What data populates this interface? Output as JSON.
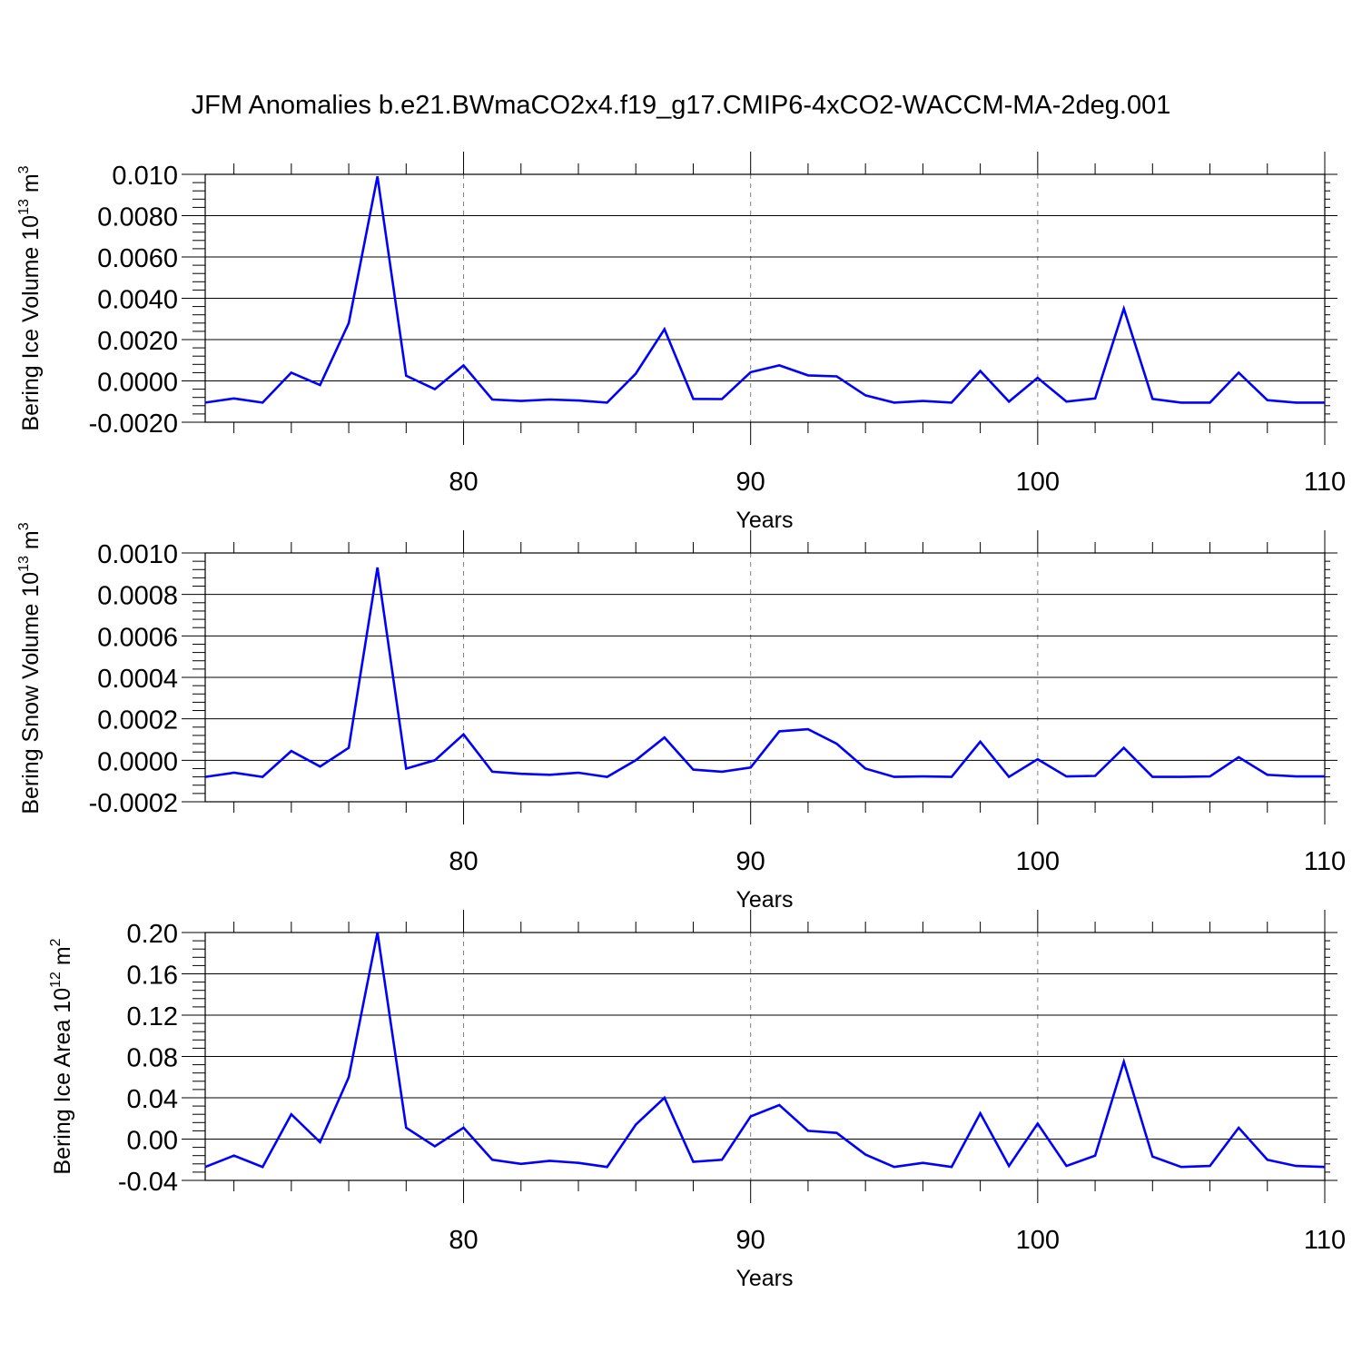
{
  "title": "JFM Anomalies b.e21.BWmaCO2x4.f19_g17.CMIP6-4xCO2-WACCM-MA-2deg.001",
  "colors": {
    "series": "#0000ff",
    "axis": "#000000",
    "grid": "#808080"
  },
  "chart_data": [
    {
      "type": "line",
      "xlabel": "Years",
      "ylabel": {
        "text": "Bering Ice Volume 10",
        "sup1": "13",
        "mid": " m",
        "sup2": "3"
      },
      "xlim": [
        71,
        110
      ],
      "ylim": [
        -0.002,
        0.01
      ],
      "xticks": [
        80,
        90,
        100,
        110
      ],
      "yticks": [
        -0.002,
        0.0,
        0.002,
        0.004,
        0.006,
        0.008,
        0.01
      ],
      "ytick_labels": [
        "-0.0020",
        "0.0000",
        "0.0020",
        "0.0040",
        "0.0060",
        "0.0080",
        "0.010"
      ],
      "grid_x": [
        80,
        90,
        100
      ],
      "x": [
        71,
        72,
        73,
        74,
        75,
        76,
        77,
        78,
        79,
        80,
        81,
        82,
        83,
        84,
        85,
        86,
        87,
        88,
        89,
        90,
        91,
        92,
        93,
        94,
        95,
        96,
        97,
        98,
        99,
        100,
        101,
        102,
        103,
        104,
        105,
        106,
        107,
        108,
        109,
        110
      ],
      "y": [
        -0.00105,
        -0.00085,
        -0.00105,
        0.0004,
        -0.0002,
        0.0028,
        0.0099,
        0.00025,
        -0.0004,
        0.00075,
        -0.0009,
        -0.00097,
        -0.0009,
        -0.00095,
        -0.00105,
        0.00035,
        0.0025,
        -0.00087,
        -0.00088,
        0.00042,
        0.00075,
        0.00027,
        0.00022,
        -0.0007,
        -0.00105,
        -0.00097,
        -0.00105,
        0.00048,
        -0.001,
        0.00015,
        -0.001,
        -0.00085,
        0.0035,
        -0.00087,
        -0.00105,
        -0.00105,
        0.0004,
        -0.00093,
        -0.00105,
        -0.00105
      ]
    },
    {
      "type": "line",
      "xlabel": "Years",
      "ylabel": {
        "text": "Bering Snow Volume 10",
        "sup1": "13",
        "mid": " m",
        "sup2": "3"
      },
      "xlim": [
        71,
        110
      ],
      "ylim": [
        -0.0002,
        0.001
      ],
      "xticks": [
        80,
        90,
        100,
        110
      ],
      "yticks": [
        -0.0002,
        0.0,
        0.0002,
        0.0004,
        0.0006,
        0.0008,
        0.001
      ],
      "ytick_labels": [
        "-0.0002",
        "0.0000",
        "0.0002",
        "0.0004",
        "0.0006",
        "0.0008",
        "0.0010"
      ],
      "grid_x": [
        80,
        90,
        100
      ],
      "x": [
        71,
        72,
        73,
        74,
        75,
        76,
        77,
        78,
        79,
        80,
        81,
        82,
        83,
        84,
        85,
        86,
        87,
        88,
        89,
        90,
        91,
        92,
        93,
        94,
        95,
        96,
        97,
        98,
        99,
        100,
        101,
        102,
        103,
        104,
        105,
        106,
        107,
        108,
        109,
        110
      ],
      "y": [
        -8e-05,
        -6e-05,
        -8e-05,
        4.5e-05,
        -3e-05,
        6e-05,
        0.00093,
        -4e-05,
        0.0,
        0.000125,
        -5.5e-05,
        -6.5e-05,
        -7e-05,
        -6e-05,
        -8e-05,
        0.0,
        0.00011,
        -4.5e-05,
        -5.5e-05,
        -3.5e-05,
        0.00014,
        0.00015,
        8e-05,
        -4e-05,
        -8e-05,
        -7.8e-05,
        -8e-05,
        9e-05,
        -8e-05,
        5e-06,
        -7.8e-05,
        -7.5e-05,
        6e-05,
        -8e-05,
        -8e-05,
        -7.8e-05,
        1.5e-05,
        -7e-05,
        -7.8e-05,
        -7.8e-05
      ]
    },
    {
      "type": "line",
      "xlabel": "Years",
      "ylabel": {
        "text": "Bering Ice Area 10",
        "sup1": "12",
        "mid": " m",
        "sup2": "2"
      },
      "xlim": [
        71,
        110
      ],
      "ylim": [
        -0.04,
        0.2
      ],
      "xticks": [
        80,
        90,
        100,
        110
      ],
      "yticks": [
        -0.04,
        0.0,
        0.04,
        0.08,
        0.12,
        0.16,
        0.2
      ],
      "ytick_labels": [
        "-0.04",
        "0.00",
        "0.04",
        "0.08",
        "0.12",
        "0.16",
        "0.20"
      ],
      "grid_x": [
        80,
        90,
        100
      ],
      "x": [
        71,
        72,
        73,
        74,
        75,
        76,
        77,
        78,
        79,
        80,
        81,
        82,
        83,
        84,
        85,
        86,
        87,
        88,
        89,
        90,
        91,
        92,
        93,
        94,
        95,
        96,
        97,
        98,
        99,
        100,
        101,
        102,
        103,
        104,
        105,
        106,
        107,
        108,
        109,
        110
      ],
      "y": [
        -0.027,
        -0.016,
        -0.027,
        0.024,
        -0.003,
        0.06,
        0.2,
        0.011,
        -0.007,
        0.011,
        -0.02,
        -0.024,
        -0.021,
        -0.023,
        -0.027,
        0.014,
        0.04,
        -0.022,
        -0.02,
        0.022,
        0.033,
        0.008,
        0.006,
        -0.015,
        -0.027,
        -0.023,
        -0.027,
        0.025,
        -0.026,
        0.015,
        -0.026,
        -0.016,
        0.075,
        -0.017,
        -0.027,
        -0.026,
        0.011,
        -0.02,
        -0.026,
        -0.027
      ]
    }
  ]
}
